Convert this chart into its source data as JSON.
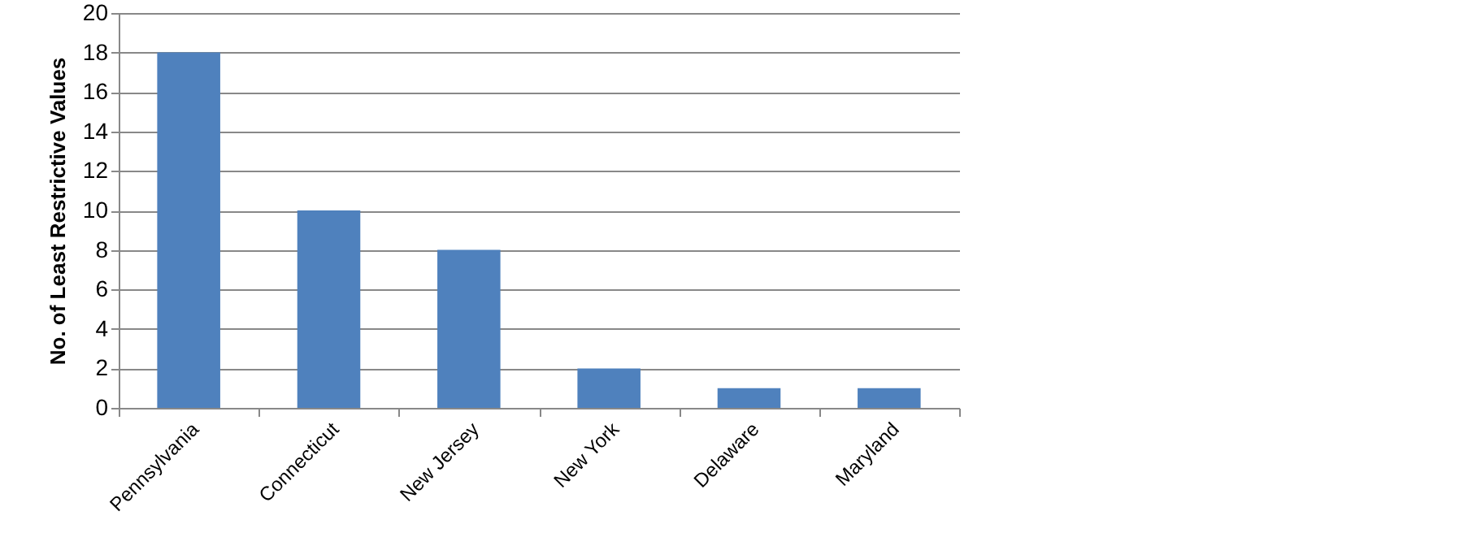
{
  "chart_data": {
    "type": "bar",
    "ylabel": "No. of Least Restrictive Values",
    "categories": [
      "Pennsylvania",
      "Connecticut",
      "New Jersey",
      "New York",
      "Delaware",
      "Maryland"
    ],
    "values": [
      18,
      10,
      8,
      2,
      1,
      1
    ],
    "color": "#4f81bd",
    "ylim": [
      0,
      20
    ],
    "yticks": [
      0,
      2,
      4,
      6,
      8,
      10,
      12,
      14,
      16,
      18,
      20
    ],
    "grid": "y",
    "legend": false
  }
}
